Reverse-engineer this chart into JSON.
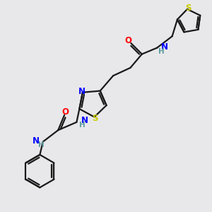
{
  "bg_color": "#e8e8eb",
  "bond_color": "#1a1a1a",
  "atom_colors": {
    "N": "#0000ff",
    "O": "#ff0000",
    "S": "#cccc00",
    "H": "#5f9ea0",
    "C": "#1a1a1a"
  },
  "bond_lw": 1.6,
  "font_size": 8.5,
  "fig_size": [
    3.0,
    3.0
  ],
  "dpi": 100
}
